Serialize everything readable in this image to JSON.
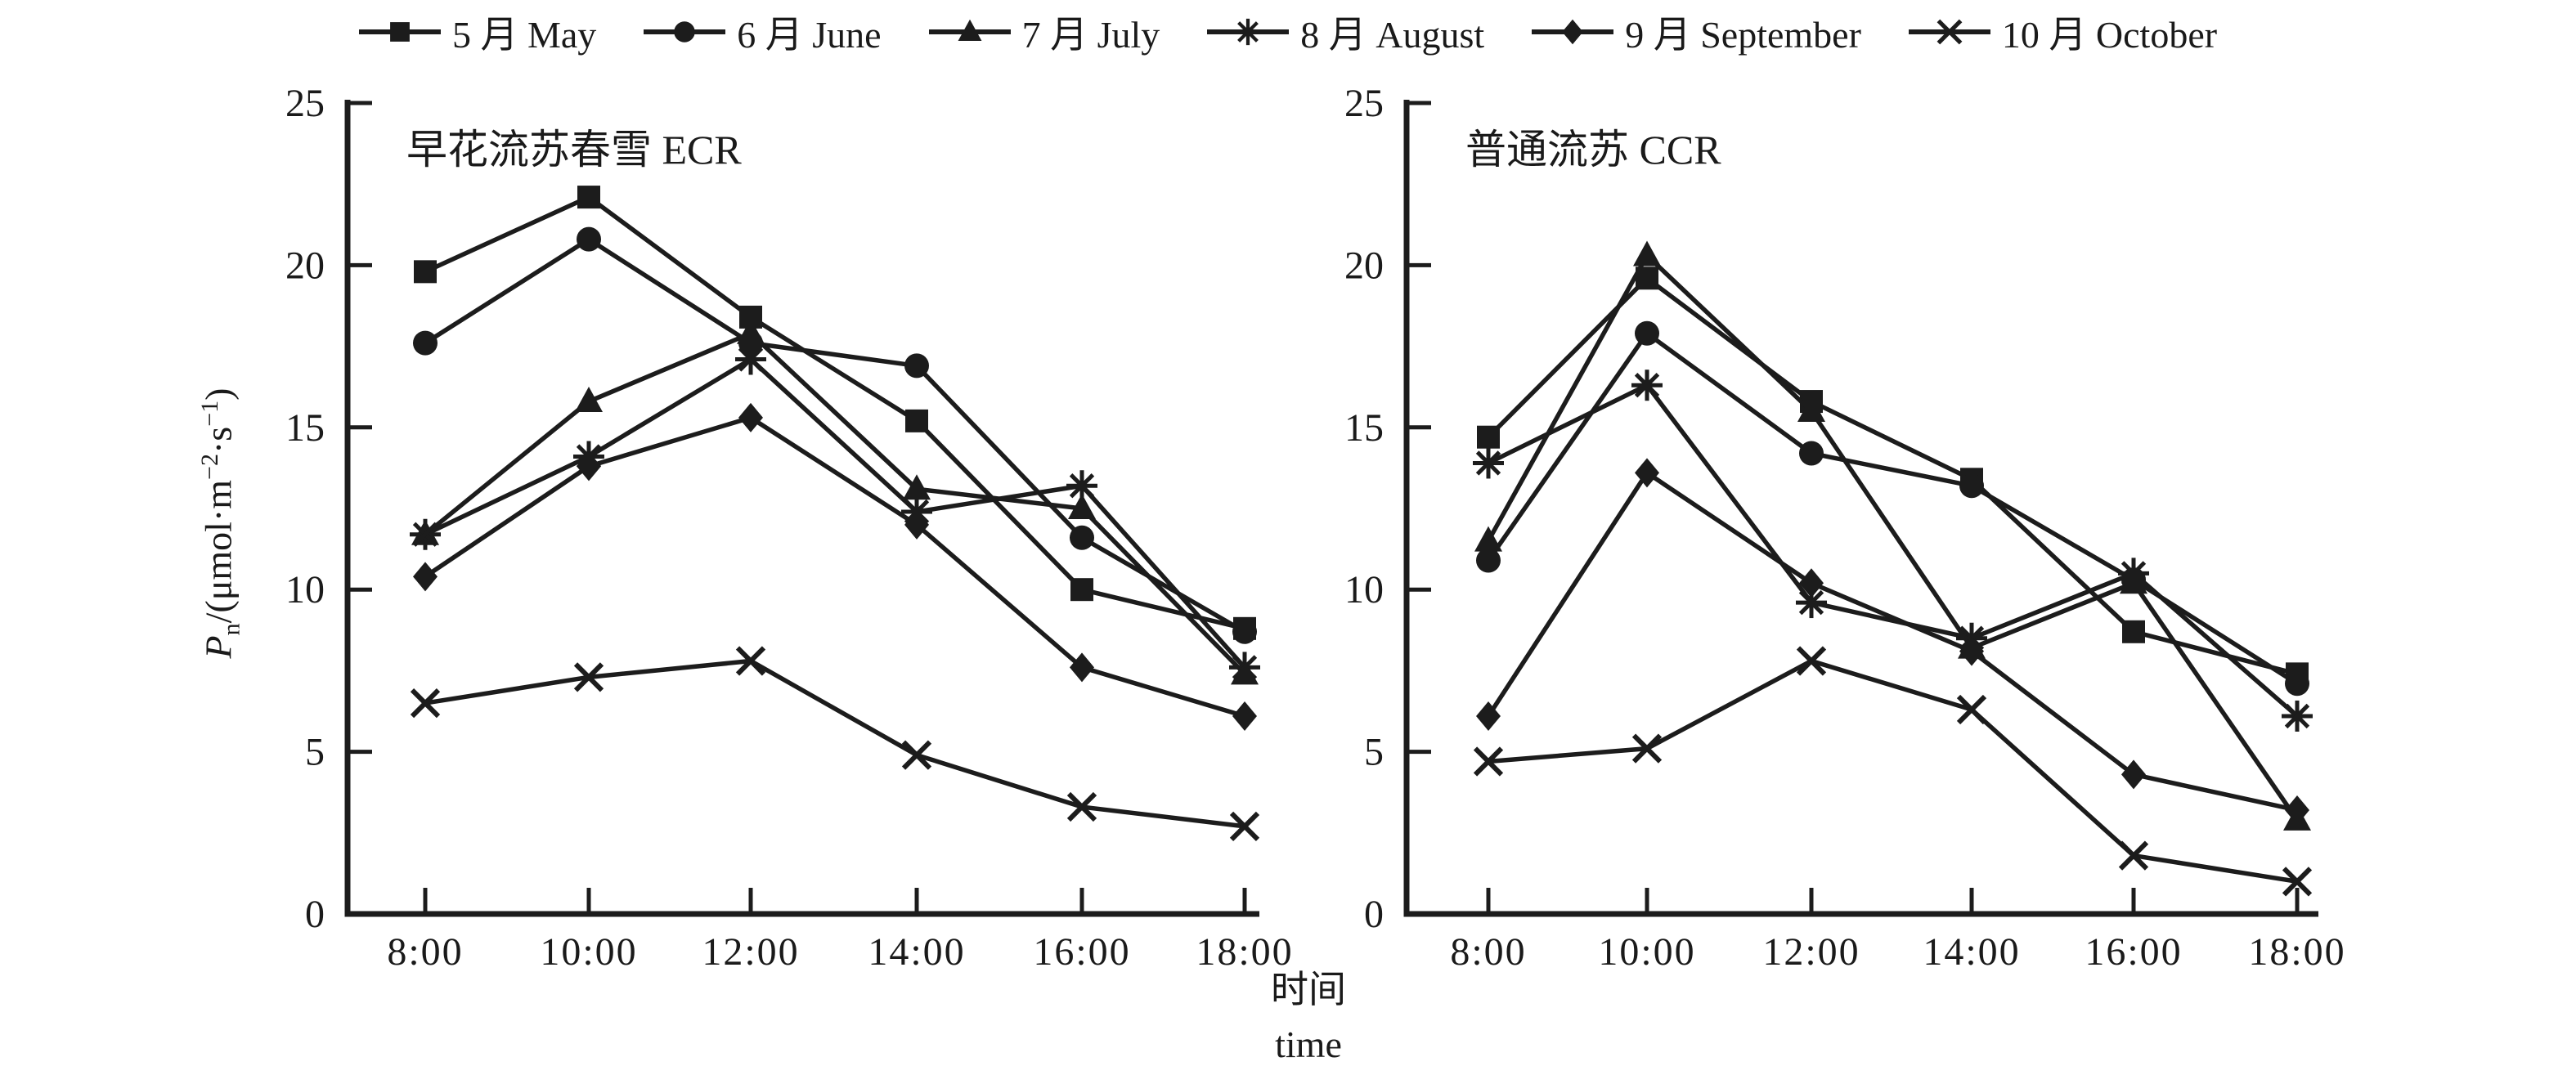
{
  "legend": {
    "items": [
      {
        "marker": "square",
        "label": "5 月 May"
      },
      {
        "marker": "circle",
        "label": "6 月 June"
      },
      {
        "marker": "triangle",
        "label": "7 月 July"
      },
      {
        "marker": "asterisk",
        "label": "8 月 August"
      },
      {
        "marker": "diamond",
        "label": "9 月 September"
      },
      {
        "marker": "x",
        "label": "10 月 October"
      }
    ]
  },
  "axes": {
    "ylabel": {
      "p": "P",
      "sub": "n",
      "mid1": "/(μmol·m",
      "sup1": "−2",
      "mid2": "·s",
      "sup2": "−1",
      "end": ")"
    },
    "xlabel_cn": "时间",
    "xlabel_en": "time"
  },
  "colors": {
    "ink": "#1c1c1c"
  },
  "chart_data": [
    {
      "type": "line",
      "title": "早花流苏春雪 ECR",
      "categories": [
        "8:00",
        "10:00",
        "12:00",
        "14:00",
        "16:00",
        "18:00"
      ],
      "y_ticks": [
        0,
        5,
        10,
        15,
        20,
        25
      ],
      "ylim": [
        0,
        25
      ],
      "xlabel": "时间 time",
      "ylabel": "Pn/(μmol·m−2·s−1)",
      "legend_position": "top",
      "grid": false,
      "series": [
        {
          "name": "5 月 May",
          "marker": "square",
          "values": [
            19.8,
            22.1,
            18.4,
            15.2,
            10.0,
            8.8
          ]
        },
        {
          "name": "6 月 June",
          "marker": "circle",
          "values": [
            17.6,
            20.8,
            17.6,
            16.9,
            11.6,
            8.7
          ]
        },
        {
          "name": "7 月 July",
          "marker": "triangle",
          "values": [
            11.7,
            15.8,
            17.9,
            13.1,
            12.5,
            7.4
          ]
        },
        {
          "name": "8 月 August",
          "marker": "asterisk",
          "values": [
            11.7,
            14.1,
            17.1,
            12.4,
            13.2,
            7.6
          ]
        },
        {
          "name": "9 月 September",
          "marker": "diamond",
          "values": [
            10.4,
            13.8,
            15.3,
            12.0,
            7.6,
            6.1
          ]
        },
        {
          "name": "10 月 October",
          "marker": "x",
          "values": [
            6.5,
            7.3,
            7.8,
            4.9,
            3.3,
            2.7
          ]
        }
      ]
    },
    {
      "type": "line",
      "title": "普通流苏 CCR",
      "categories": [
        "8:00",
        "10:00",
        "12:00",
        "14:00",
        "16:00",
        "18:00"
      ],
      "y_ticks": [
        0,
        5,
        10,
        15,
        20,
        25
      ],
      "ylim": [
        0,
        25
      ],
      "xlabel": "时间 time",
      "ylabel": "Pn/(μmol·m−2·s−1)",
      "legend_position": "top",
      "grid": false,
      "series": [
        {
          "name": "5 月 May",
          "marker": "square",
          "values": [
            14.7,
            19.6,
            15.8,
            13.4,
            8.7,
            7.4
          ]
        },
        {
          "name": "6 月 June",
          "marker": "circle",
          "values": [
            10.9,
            17.9,
            14.2,
            13.2,
            10.3,
            7.1
          ]
        },
        {
          "name": "7 月 July",
          "marker": "triangle",
          "values": [
            11.5,
            20.3,
            15.5,
            8.2,
            10.2,
            2.9
          ]
        },
        {
          "name": "8 月 August",
          "marker": "asterisk",
          "values": [
            13.9,
            16.3,
            9.6,
            8.5,
            10.5,
            6.1
          ]
        },
        {
          "name": "9 月 September",
          "marker": "diamond",
          "values": [
            6.1,
            13.6,
            10.2,
            8.1,
            4.3,
            3.2
          ]
        },
        {
          "name": "10 月 October",
          "marker": "x",
          "values": [
            4.7,
            5.1,
            7.8,
            6.3,
            1.8,
            1.0
          ]
        }
      ]
    }
  ]
}
